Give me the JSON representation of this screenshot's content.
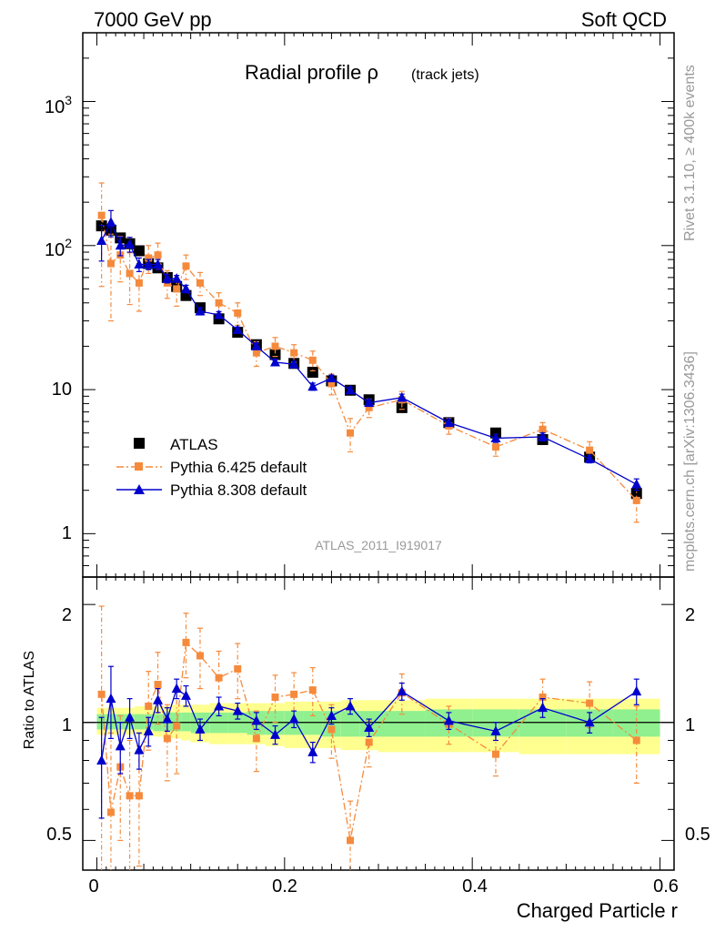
{
  "header": {
    "left": "7000 GeV pp",
    "right": "Soft QCD"
  },
  "side": {
    "rivet": "Rivet 3.1.10, ≥ 400k events",
    "mcplots": "mcplots.cern.ch [arXiv:1306.3436]"
  },
  "plot_title": {
    "main": "Radial profile ρ",
    "sub": "(track jets)"
  },
  "analysis_label": "ATLAS_2011_I919017",
  "colors": {
    "atlas": "#000000",
    "pythia6": "#f58a3c",
    "pythia8": "#0000cc",
    "band_inner": "#90f090",
    "band_outer": "#ffff90",
    "label_gray": "#999999"
  },
  "chart_data": [
    {
      "type": "scatter",
      "name": "main",
      "xlabel": "",
      "ylabel": "",
      "yscale": "log",
      "xlim": [
        -0.015,
        0.615
      ],
      "ylim": [
        0.5,
        3000
      ],
      "ytick_labels": [
        "1",
        "10",
        "10^2",
        "10^3"
      ],
      "legend_position": "center-left",
      "legend": [
        "ATLAS",
        "Pythia 6.425 default",
        "Pythia 8.308 default"
      ],
      "series": [
        {
          "name": "ATLAS",
          "x": [
            0.005,
            0.015,
            0.025,
            0.035,
            0.045,
            0.055,
            0.065,
            0.075,
            0.085,
            0.095,
            0.11,
            0.13,
            0.15,
            0.17,
            0.19,
            0.21,
            0.23,
            0.25,
            0.27,
            0.29,
            0.325,
            0.375,
            0.425,
            0.475,
            0.525,
            0.575
          ],
          "y": [
            137,
            128,
            113,
            103,
            92,
            75,
            70,
            60,
            52,
            45,
            37,
            31,
            25,
            20.5,
            17.5,
            15.2,
            13.2,
            11.5,
            9.9,
            8.5,
            7.5,
            5.9,
            5,
            4.5,
            3.4,
            1.9
          ],
          "err": [
            6,
            6,
            5,
            5,
            4,
            3,
            3,
            3,
            2,
            2,
            2,
            1.5,
            1,
            1,
            0.8,
            0.7,
            0.6,
            0.5,
            0.5,
            0.4,
            0.35,
            0.3,
            0.25,
            0.25,
            0.2,
            0.15
          ]
        },
        {
          "name": "Pythia 6.425 default",
          "x": [
            0.005,
            0.015,
            0.025,
            0.035,
            0.045,
            0.055,
            0.065,
            0.075,
            0.085,
            0.095,
            0.11,
            0.13,
            0.15,
            0.17,
            0.19,
            0.21,
            0.23,
            0.25,
            0.27,
            0.29,
            0.325,
            0.375,
            0.425,
            0.475,
            0.525,
            0.575
          ],
          "y": [
            162,
            75,
            86,
            64,
            55,
            82,
            86,
            55,
            50,
            72,
            55,
            40,
            34,
            18,
            20,
            18,
            16,
            11,
            5,
            7.5,
            8.5,
            5.6,
            4,
            5.3,
            3.8,
            1.7
          ],
          "err": [
            110,
            45,
            30,
            25,
            20,
            18,
            18,
            12,
            12,
            14,
            10,
            7,
            6,
            3.5,
            3,
            2.5,
            2.5,
            1.8,
            1.3,
            1.1,
            1.2,
            0.7,
            0.55,
            0.6,
            0.55,
            0.5
          ]
        },
        {
          "name": "Pythia 8.308 default",
          "x": [
            0.005,
            0.015,
            0.025,
            0.035,
            0.045,
            0.055,
            0.065,
            0.075,
            0.085,
            0.095,
            0.11,
            0.13,
            0.15,
            0.17,
            0.19,
            0.21,
            0.23,
            0.25,
            0.27,
            0.29,
            0.325,
            0.375,
            0.425,
            0.475,
            0.525,
            0.575
          ],
          "y": [
            108,
            145,
            100,
            102,
            74,
            74,
            74,
            59,
            59,
            50,
            35,
            33,
            26,
            20,
            15.5,
            15,
            10.5,
            12,
            9.9,
            8.1,
            8.8,
            5.9,
            4.6,
            4.7,
            3.3,
            2.2
          ],
          "err": [
            30,
            30,
            15,
            12,
            8,
            6,
            6,
            4,
            3,
            3,
            2,
            1.8,
            1.2,
            1,
            0.8,
            0.7,
            0.6,
            0.6,
            0.5,
            0.45,
            0.5,
            0.35,
            0.3,
            0.3,
            0.2,
            0.2
          ]
        }
      ]
    },
    {
      "type": "scatter",
      "name": "ratio",
      "xlabel": "Charged Particle r",
      "ylabel": "Ratio to ATLAS",
      "yscale": "log",
      "xlim": [
        -0.015,
        0.615
      ],
      "ylim": [
        0.42,
        2.35
      ],
      "yticks": [
        0.5,
        1,
        2
      ],
      "ytick_labels": [
        "0.5",
        "1",
        "2"
      ],
      "xticks": [
        0,
        0.2,
        0.4,
        0.6
      ],
      "xtick_labels": [
        "0",
        "0.2",
        "0.4",
        "0.6"
      ],
      "bands": {
        "edges": [
          0,
          0.01,
          0.02,
          0.03,
          0.04,
          0.05,
          0.06,
          0.07,
          0.08,
          0.09,
          0.1,
          0.12,
          0.14,
          0.16,
          0.18,
          0.2,
          0.22,
          0.24,
          0.26,
          0.28,
          0.3,
          0.35,
          0.4,
          0.45,
          0.5,
          0.55,
          0.6
        ],
        "outer_lo": [
          0.93,
          0.93,
          0.93,
          0.93,
          0.93,
          0.93,
          0.92,
          0.91,
          0.91,
          0.9,
          0.89,
          0.88,
          0.88,
          0.88,
          0.87,
          0.86,
          0.86,
          0.86,
          0.85,
          0.85,
          0.84,
          0.84,
          0.84,
          0.83,
          0.83,
          0.83
        ],
        "outer_hi": [
          1.09,
          1.09,
          1.09,
          1.09,
          1.1,
          1.1,
          1.1,
          1.1,
          1.11,
          1.11,
          1.11,
          1.12,
          1.12,
          1.12,
          1.12,
          1.13,
          1.13,
          1.13,
          1.14,
          1.14,
          1.14,
          1.15,
          1.15,
          1.15,
          1.15,
          1.15
        ],
        "inner_lo": [
          0.96,
          0.96,
          0.96,
          0.96,
          0.96,
          0.96,
          0.95,
          0.95,
          0.95,
          0.95,
          0.94,
          0.94,
          0.94,
          0.93,
          0.93,
          0.93,
          0.93,
          0.92,
          0.92,
          0.92,
          0.92,
          0.92,
          0.92,
          0.92,
          0.92,
          0.92
        ],
        "inner_hi": [
          1.05,
          1.05,
          1.05,
          1.05,
          1.05,
          1.05,
          1.05,
          1.06,
          1.06,
          1.06,
          1.06,
          1.06,
          1.06,
          1.07,
          1.07,
          1.07,
          1.07,
          1.07,
          1.07,
          1.07,
          1.07,
          1.08,
          1.08,
          1.08,
          1.08,
          1.08
        ]
      },
      "series": [
        {
          "name": "Pythia 6.425 default",
          "x": [
            0.005,
            0.015,
            0.025,
            0.035,
            0.045,
            0.055,
            0.065,
            0.075,
            0.085,
            0.095,
            0.11,
            0.13,
            0.15,
            0.17,
            0.19,
            0.21,
            0.23,
            0.25,
            0.27,
            0.29,
            0.325,
            0.375,
            0.425,
            0.475,
            0.525,
            0.575
          ],
          "y": [
            1.18,
            0.59,
            0.77,
            0.65,
            0.65,
            1.1,
            1.25,
            0.91,
            0.98,
            1.6,
            1.48,
            1.3,
            1.37,
            0.91,
            1.16,
            1.18,
            1.21,
            0.96,
            0.5,
            0.89,
            1.19,
            0.99,
            0.83,
            1.16,
            1.12,
            0.9
          ],
          "err": [
            0.8,
            0.35,
            0.27,
            0.25,
            0.22,
            0.25,
            0.26,
            0.2,
            0.24,
            0.3,
            0.26,
            0.22,
            0.22,
            0.16,
            0.16,
            0.16,
            0.17,
            0.15,
            0.13,
            0.12,
            0.14,
            0.11,
            0.1,
            0.13,
            0.15,
            0.2
          ]
        },
        {
          "name": "Pythia 8.308 default",
          "x": [
            0.005,
            0.015,
            0.025,
            0.035,
            0.045,
            0.055,
            0.065,
            0.075,
            0.085,
            0.095,
            0.11,
            0.13,
            0.15,
            0.17,
            0.19,
            0.21,
            0.23,
            0.25,
            0.27,
            0.29,
            0.325,
            0.375,
            0.425,
            0.475,
            0.525,
            0.575
          ],
          "y": [
            0.8,
            1.15,
            0.87,
            1.03,
            0.85,
            0.95,
            1.14,
            1.02,
            1.22,
            1.17,
            0.96,
            1.1,
            1.07,
            1.01,
            0.93,
            1.02,
            0.84,
            1.04,
            1.1,
            0.97,
            1.2,
            1.01,
            0.95,
            1.09,
            1.0,
            1.2
          ],
          "err": [
            0.23,
            0.24,
            0.13,
            0.12,
            0.09,
            0.08,
            0.08,
            0.07,
            0.07,
            0.07,
            0.06,
            0.06,
            0.05,
            0.05,
            0.05,
            0.05,
            0.05,
            0.05,
            0.05,
            0.05,
            0.06,
            0.05,
            0.05,
            0.06,
            0.06,
            0.09
          ]
        }
      ]
    }
  ]
}
